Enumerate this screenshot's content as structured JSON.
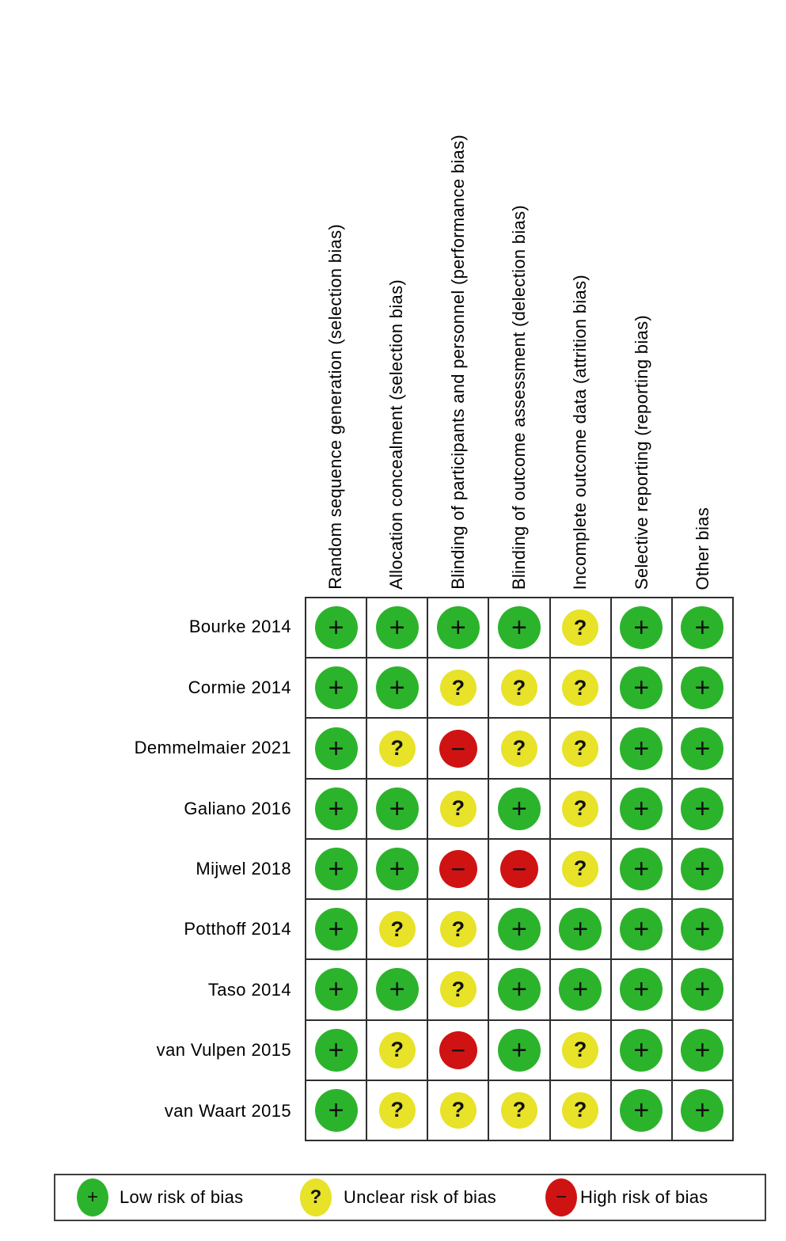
{
  "symbols": {
    "low": "+",
    "unclear": "?",
    "high": "−"
  },
  "colors": {
    "low": "#2cb32c",
    "unclear": "#e8e228",
    "high": "#cf1312",
    "grid_line": "#2e2e2e"
  },
  "legend": [
    {
      "key": "low",
      "label": "Low risk of bias"
    },
    {
      "key": "unclear",
      "label": "Unclear risk of bias"
    },
    {
      "key": "high",
      "label": "High risk of bias"
    }
  ],
  "chart_data": {
    "type": "heatmap",
    "title": "",
    "x_categories": [
      "Random sequence generation (selection bias)",
      "Allocation concealment (selection bias)",
      "Blinding of participants and personnel (performance bias)",
      "Blinding of outcome assessment (delection bias)",
      "Incomplete outcome data (attrition bias)",
      "Selective reporting (reporting bias)",
      "Other bias"
    ],
    "y_categories": [
      "Bourke 2014",
      "Cormie 2014",
      "Demmelmaier 2021",
      "Galiano 2016",
      "Mijwel 2018",
      "Potthoff 2014",
      "Taso 2014",
      "van Vulpen 2015",
      "van Waart 2015"
    ],
    "values": [
      [
        "low",
        "low",
        "low",
        "low",
        "unclear",
        "low",
        "low"
      ],
      [
        "low",
        "low",
        "unclear",
        "unclear",
        "unclear",
        "low",
        "low"
      ],
      [
        "low",
        "unclear",
        "high",
        "unclear",
        "unclear",
        "low",
        "low"
      ],
      [
        "low",
        "low",
        "unclear",
        "low",
        "unclear",
        "low",
        "low"
      ],
      [
        "low",
        "low",
        "high",
        "high",
        "unclear",
        "low",
        "low"
      ],
      [
        "low",
        "unclear",
        "unclear",
        "low",
        "low",
        "low",
        "low"
      ],
      [
        "low",
        "low",
        "unclear",
        "low",
        "low",
        "low",
        "low"
      ],
      [
        "low",
        "unclear",
        "high",
        "low",
        "unclear",
        "low",
        "low"
      ],
      [
        "low",
        "unclear",
        "unclear",
        "unclear",
        "unclear",
        "low",
        "low"
      ]
    ],
    "value_labels": {
      "low": "Low risk of bias",
      "unclear": "Unclear risk of bias",
      "high": "High risk of bias"
    },
    "legend_position": "bottom"
  }
}
